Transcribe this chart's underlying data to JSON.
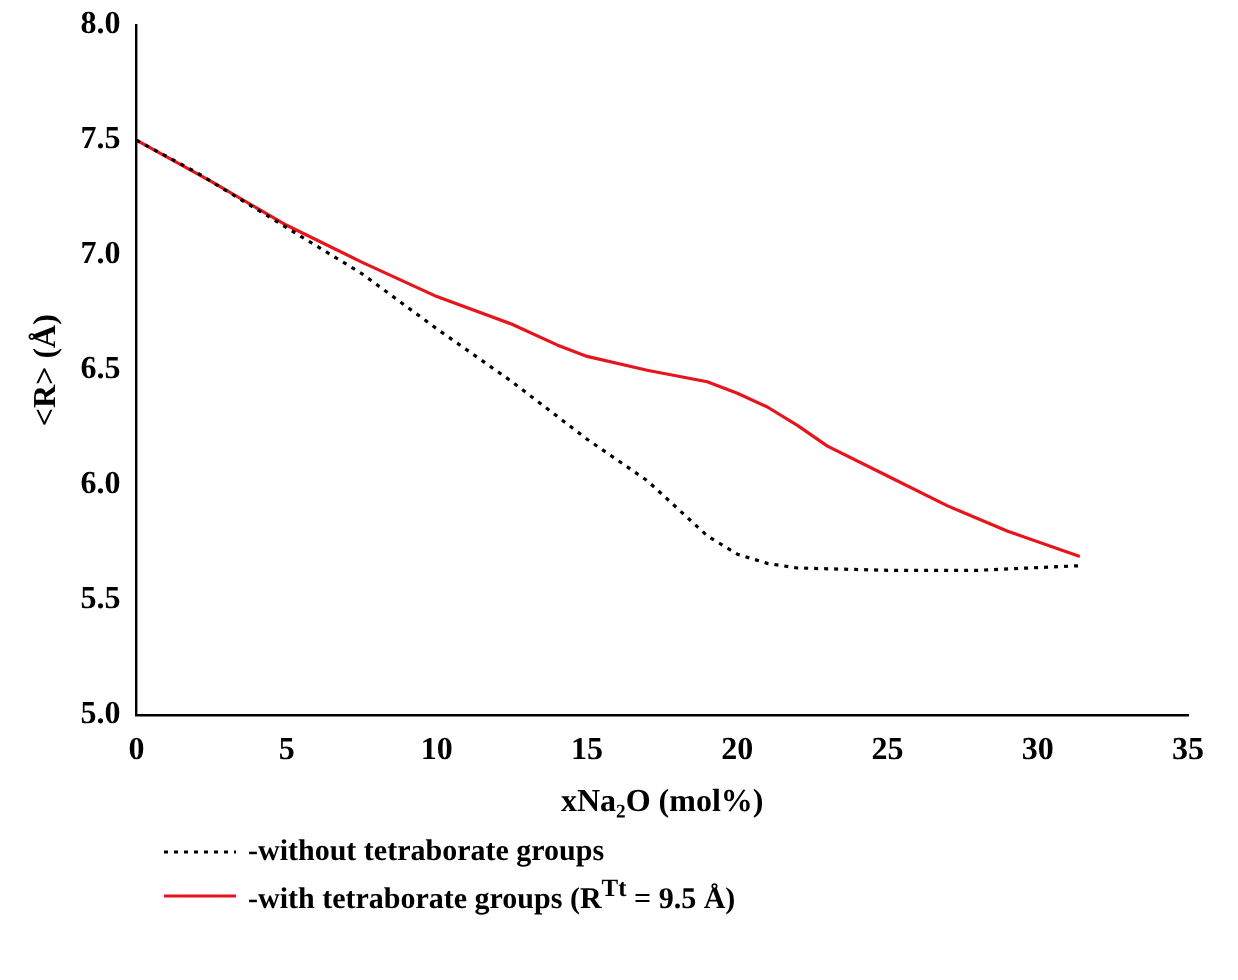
{
  "chart_data": {
    "type": "line",
    "xlabel": "xNa₂O (mol%)",
    "ylabel": "<R> (Å)",
    "xlim": [
      0,
      35
    ],
    "xticks": [
      0,
      5,
      10,
      15,
      20,
      25,
      30,
      35
    ],
    "ylim": [
      5.0,
      8.0
    ],
    "yticks": [
      {
        "value": 5,
        "label": "5.0"
      },
      5.5,
      {
        "value": 6,
        "label": "6.0"
      },
      6.5,
      {
        "value": 7,
        "label": "7.0"
      },
      7.5,
      {
        "value": 8,
        "label": "8.0"
      }
    ],
    "grid": false,
    "legend": "bottom",
    "marker": "none",
    "series": [
      {
        "name": "-without tetraborate groups",
        "color": "#000000",
        "line_style": "dotted",
        "x": [
          0,
          2,
          5,
          7.5,
          10,
          12.5,
          15,
          17,
          19,
          20,
          21,
          22,
          25,
          28,
          31.4
        ],
        "values": [
          7.5,
          7.36,
          7.12,
          6.92,
          6.68,
          6.45,
          6.2,
          6.02,
          5.78,
          5.7,
          5.66,
          5.64,
          5.63,
          5.63,
          5.65
        ]
      },
      {
        "name": "-with tetraborate groups (R$^{Tt}$ = 9.5 Å)",
        "color": "#e8141b",
        "line_style": "solid",
        "x": [
          0,
          2.5,
          5,
          7.5,
          10,
          12.5,
          14,
          15,
          17,
          19,
          20,
          21,
          22,
          23,
          25,
          27,
          29,
          31.4
        ],
        "values": [
          7.5,
          7.32,
          7.13,
          6.97,
          6.82,
          6.7,
          6.61,
          6.56,
          6.5,
          6.45,
          6.4,
          6.34,
          6.26,
          6.17,
          6.04,
          5.91,
          5.8,
          5.69
        ]
      }
    ]
  }
}
